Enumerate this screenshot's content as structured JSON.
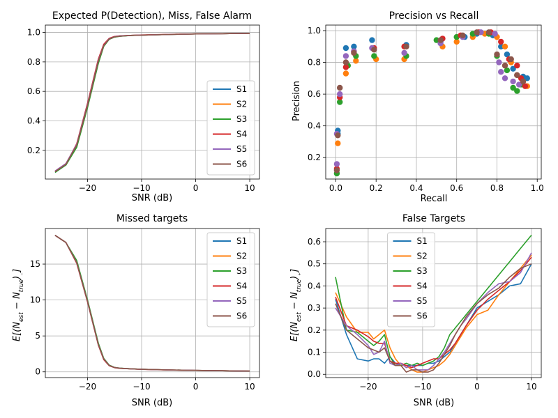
{
  "figure": {
    "colors": {
      "S1": "#1f77b4",
      "S2": "#ff7f0e",
      "S3": "#2ca02c",
      "S4": "#d62728",
      "S5": "#9467bd",
      "S6": "#8c564b",
      "grid": "#b0b0b0"
    }
  },
  "chart_data": [
    {
      "id": "detection",
      "type": "line",
      "title": "Expected P(Detection), Miss, False Alarm",
      "xlabel": "SNR (dB)",
      "ylabel": "",
      "xlim": [
        -27.8,
        11.8
      ],
      "ylim": [
        0.005,
        1.05
      ],
      "xticks": [
        -20,
        -10,
        0,
        10
      ],
      "xtick_labels": [
        "−20",
        "−10",
        "0",
        "10"
      ],
      "yticks": [
        0.2,
        0.4,
        0.6,
        0.8,
        1.0
      ],
      "ytick_labels": [
        "0.2",
        "0.4",
        "0.6",
        "0.8",
        "1.0"
      ],
      "grid": true,
      "legend": "lower right",
      "x": [
        -26,
        -24,
        -22,
        -20,
        -18,
        -17,
        -16,
        -15,
        -14,
        -12,
        -10,
        -5,
        0,
        5,
        10
      ],
      "series": [
        {
          "name": "S1",
          "values": [
            0.05,
            0.1,
            0.23,
            0.5,
            0.8,
            0.91,
            0.955,
            0.97,
            0.975,
            0.98,
            0.982,
            0.986,
            0.99,
            0.992,
            0.994
          ]
        },
        {
          "name": "S2",
          "values": [
            0.06,
            0.11,
            0.24,
            0.51,
            0.81,
            0.915,
            0.958,
            0.972,
            0.976,
            0.98,
            0.982,
            0.986,
            0.99,
            0.992,
            0.994
          ]
        },
        {
          "name": "S3",
          "values": [
            0.05,
            0.1,
            0.22,
            0.49,
            0.79,
            0.905,
            0.953,
            0.968,
            0.974,
            0.979,
            0.982,
            0.986,
            0.99,
            0.992,
            0.994
          ]
        },
        {
          "name": "S4",
          "values": [
            0.055,
            0.105,
            0.245,
            0.52,
            0.82,
            0.92,
            0.96,
            0.973,
            0.977,
            0.98,
            0.983,
            0.987,
            0.99,
            0.992,
            0.994
          ]
        },
        {
          "name": "S5",
          "values": [
            0.06,
            0.11,
            0.24,
            0.51,
            0.81,
            0.912,
            0.957,
            0.971,
            0.976,
            0.98,
            0.982,
            0.986,
            0.99,
            0.992,
            0.994
          ]
        },
        {
          "name": "S6",
          "values": [
            0.055,
            0.105,
            0.235,
            0.505,
            0.805,
            0.91,
            0.955,
            0.97,
            0.975,
            0.98,
            0.982,
            0.986,
            0.99,
            0.992,
            0.994
          ]
        }
      ]
    },
    {
      "id": "precision-recall",
      "type": "scatter",
      "title": "Precision vs Recall",
      "xlabel": "Recall",
      "ylabel": "Precision",
      "xlim": [
        -0.05,
        1.02
      ],
      "ylim": [
        0.065,
        1.035
      ],
      "xticks": [
        0.0,
        0.2,
        0.4,
        0.6,
        0.8,
        1.0
      ],
      "xtick_labels": [
        "0.0",
        "0.2",
        "0.4",
        "0.6",
        "0.8",
        "1.0"
      ],
      "yticks": [
        0.2,
        0.4,
        0.6,
        0.8,
        1.0
      ],
      "ytick_labels": [
        "0.2",
        "0.4",
        "0.6",
        "0.8",
        "1.0"
      ],
      "grid": true,
      "series": [
        {
          "name": "S1",
          "points": [
            [
              0.01,
              0.37
            ],
            [
              0.01,
              0.35
            ],
            [
              0.05,
              0.89
            ],
            [
              0.09,
              0.9
            ],
            [
              0.18,
              0.94
            ],
            [
              0.35,
              0.91
            ],
            [
              0.52,
              0.93
            ],
            [
              0.64,
              0.96
            ],
            [
              0.7,
              0.98
            ],
            [
              0.78,
              0.97
            ],
            [
              0.82,
              0.9
            ],
            [
              0.85,
              0.85
            ],
            [
              0.88,
              0.76
            ],
            [
              0.9,
              0.72
            ],
            [
              0.93,
              0.71
            ],
            [
              0.95,
              0.7
            ]
          ]
        },
        {
          "name": "S2",
          "points": [
            [
              0.01,
              0.29
            ],
            [
              0.05,
              0.73
            ],
            [
              0.1,
              0.81
            ],
            [
              0.2,
              0.82
            ],
            [
              0.34,
              0.82
            ],
            [
              0.53,
              0.9
            ],
            [
              0.6,
              0.93
            ],
            [
              0.68,
              0.96
            ],
            [
              0.74,
              0.98
            ],
            [
              0.8,
              0.96
            ],
            [
              0.84,
              0.9
            ],
            [
              0.87,
              0.8
            ],
            [
              0.9,
              0.72
            ],
            [
              0.93,
              0.68
            ],
            [
              0.95,
              0.65
            ]
          ]
        },
        {
          "name": "S3",
          "points": [
            [
              0.005,
              0.1
            ],
            [
              0.02,
              0.55
            ],
            [
              0.06,
              0.78
            ],
            [
              0.1,
              0.84
            ],
            [
              0.19,
              0.84
            ],
            [
              0.35,
              0.84
            ],
            [
              0.5,
              0.94
            ],
            [
              0.6,
              0.96
            ],
            [
              0.68,
              0.98
            ],
            [
              0.76,
              0.98
            ],
            [
              0.8,
              0.84
            ],
            [
              0.85,
              0.75
            ],
            [
              0.88,
              0.64
            ],
            [
              0.9,
              0.62
            ],
            [
              0.92,
              0.66
            ]
          ]
        },
        {
          "name": "S4",
          "points": [
            [
              0.005,
              0.13
            ],
            [
              0.02,
              0.58
            ],
            [
              0.05,
              0.77
            ],
            [
              0.09,
              0.87
            ],
            [
              0.19,
              0.89
            ],
            [
              0.34,
              0.9
            ],
            [
              0.53,
              0.95
            ],
            [
              0.62,
              0.97
            ],
            [
              0.71,
              0.99
            ],
            [
              0.77,
              0.99
            ],
            [
              0.82,
              0.93
            ],
            [
              0.86,
              0.82
            ],
            [
              0.9,
              0.78
            ],
            [
              0.92,
              0.7
            ],
            [
              0.94,
              0.65
            ]
          ]
        },
        {
          "name": "S5",
          "points": [
            [
              0.005,
              0.16
            ],
            [
              0.005,
              0.35
            ],
            [
              0.02,
              0.6
            ],
            [
              0.05,
              0.84
            ],
            [
              0.09,
              0.87
            ],
            [
              0.18,
              0.89
            ],
            [
              0.34,
              0.86
            ],
            [
              0.52,
              0.92
            ],
            [
              0.63,
              0.96
            ],
            [
              0.72,
              0.99
            ],
            [
              0.79,
              0.98
            ],
            [
              0.81,
              0.8
            ],
            [
              0.82,
              0.74
            ],
            [
              0.84,
              0.7
            ],
            [
              0.88,
              0.68
            ],
            [
              0.91,
              0.66
            ]
          ]
        },
        {
          "name": "S6",
          "points": [
            [
              0.005,
              0.12
            ],
            [
              0.01,
              0.34
            ],
            [
              0.02,
              0.64
            ],
            [
              0.05,
              0.8
            ],
            [
              0.09,
              0.86
            ],
            [
              0.19,
              0.88
            ],
            [
              0.35,
              0.9
            ],
            [
              0.52,
              0.94
            ],
            [
              0.63,
              0.97
            ],
            [
              0.7,
              0.99
            ],
            [
              0.76,
              0.99
            ],
            [
              0.8,
              0.85
            ],
            [
              0.84,
              0.78
            ],
            [
              0.87,
              0.82
            ],
            [
              0.9,
              0.72
            ],
            [
              0.93,
              0.68
            ]
          ]
        }
      ]
    },
    {
      "id": "missed",
      "type": "line",
      "title": "Missed targets",
      "xlabel": "SNR (dB)",
      "ylabel": "E[(N_est − N_true)₋]",
      "xlim": [
        -27.8,
        11.8
      ],
      "ylim": [
        -0.8,
        19.95
      ],
      "xticks": [
        -20,
        -10,
        0,
        10
      ],
      "xtick_labels": [
        "−20",
        "−10",
        "0",
        "10"
      ],
      "yticks": [
        0,
        5,
        10,
        15
      ],
      "ytick_labels": [
        "0",
        "5",
        "10",
        "15"
      ],
      "grid": true,
      "legend": "upper right",
      "x": [
        -26,
        -24,
        -22,
        -20,
        -18,
        -17,
        -16,
        -15,
        -14,
        -12,
        -10,
        -5,
        0,
        5,
        10
      ],
      "series": [
        {
          "name": "S1",
          "values": [
            19.0,
            18.0,
            15.3,
            9.8,
            3.8,
            1.8,
            0.9,
            0.6,
            0.5,
            0.42,
            0.35,
            0.27,
            0.2,
            0.15,
            0.1
          ]
        },
        {
          "name": "S2",
          "values": [
            19.0,
            18.0,
            15.2,
            9.8,
            3.8,
            1.8,
            0.9,
            0.6,
            0.5,
            0.42,
            0.35,
            0.27,
            0.2,
            0.15,
            0.1
          ]
        },
        {
          "name": "S3",
          "values": [
            19.0,
            18.0,
            15.5,
            10.0,
            4.0,
            1.9,
            0.95,
            0.62,
            0.52,
            0.43,
            0.36,
            0.27,
            0.2,
            0.15,
            0.1
          ]
        },
        {
          "name": "S4",
          "values": [
            19.0,
            18.0,
            15.1,
            9.7,
            3.7,
            1.7,
            0.85,
            0.58,
            0.48,
            0.41,
            0.34,
            0.26,
            0.2,
            0.15,
            0.1
          ]
        },
        {
          "name": "S5",
          "values": [
            19.0,
            18.0,
            15.2,
            9.8,
            3.8,
            1.8,
            0.9,
            0.6,
            0.5,
            0.42,
            0.35,
            0.27,
            0.2,
            0.15,
            0.1
          ]
        },
        {
          "name": "S6",
          "values": [
            19.0,
            18.0,
            15.2,
            9.8,
            3.8,
            1.8,
            0.9,
            0.6,
            0.5,
            0.42,
            0.35,
            0.27,
            0.2,
            0.15,
            0.1
          ]
        }
      ]
    },
    {
      "id": "false-targets",
      "type": "line",
      "title": "False Targets",
      "xlabel": "SNR (dB)",
      "ylabel": "E[(N_est − N_true)₊]",
      "xlim": [
        -27.8,
        11.8
      ],
      "ylim": [
        -0.015,
        0.66
      ],
      "xticks": [
        -20,
        -10,
        0,
        10
      ],
      "xtick_labels": [
        "−20",
        "−10",
        "0",
        "10"
      ],
      "yticks": [
        0.0,
        0.1,
        0.2,
        0.3,
        0.4,
        0.5,
        0.6
      ],
      "ytick_labels": [
        "0.0",
        "0.1",
        "0.2",
        "0.3",
        "0.4",
        "0.5",
        "0.6"
      ],
      "grid": true,
      "legend": "upper center",
      "x": [
        -26,
        -24,
        -22,
        -20,
        -19,
        -18,
        -17,
        -16,
        -15,
        -14,
        -13,
        -12,
        -11,
        -10,
        -9,
        -8,
        -7,
        -6,
        -5,
        -4,
        -3,
        -2,
        0,
        2,
        4,
        6,
        8,
        10
      ],
      "series": [
        {
          "name": "S1",
          "values": [
            0.34,
            0.18,
            0.07,
            0.06,
            0.07,
            0.07,
            0.05,
            0.08,
            0.05,
            0.04,
            0.04,
            0.04,
            0.04,
            0.04,
            0.05,
            0.05,
            0.06,
            0.08,
            0.1,
            0.14,
            0.18,
            0.22,
            0.3,
            0.33,
            0.36,
            0.4,
            0.41,
            0.5
          ]
        },
        {
          "name": "S2",
          "values": [
            0.37,
            0.26,
            0.19,
            0.19,
            0.16,
            0.18,
            0.2,
            0.12,
            0.07,
            0.04,
            0.04,
            0.02,
            0.01,
            0.01,
            0.02,
            0.03,
            0.04,
            0.06,
            0.09,
            0.13,
            0.17,
            0.21,
            0.27,
            0.29,
            0.36,
            0.42,
            0.48,
            0.54
          ]
        },
        {
          "name": "S3",
          "values": [
            0.44,
            0.2,
            0.19,
            0.15,
            0.13,
            0.15,
            0.18,
            0.08,
            0.04,
            0.04,
            0.05,
            0.04,
            0.05,
            0.04,
            0.05,
            0.06,
            0.08,
            0.12,
            0.18,
            0.21,
            0.24,
            0.27,
            0.33,
            0.39,
            0.45,
            0.51,
            0.57,
            0.63
          ]
        },
        {
          "name": "S4",
          "values": [
            0.35,
            0.22,
            0.2,
            0.17,
            0.15,
            0.14,
            0.14,
            0.06,
            0.05,
            0.05,
            0.04,
            0.03,
            0.04,
            0.05,
            0.06,
            0.07,
            0.07,
            0.09,
            0.11,
            0.14,
            0.18,
            0.22,
            0.29,
            0.34,
            0.38,
            0.42,
            0.47,
            0.53
          ]
        },
        {
          "name": "S5",
          "values": [
            0.3,
            0.22,
            0.18,
            0.13,
            0.09,
            0.1,
            0.15,
            0.05,
            0.04,
            0.05,
            0.03,
            0.04,
            0.02,
            0.02,
            0.02,
            0.04,
            0.07,
            0.1,
            0.14,
            0.18,
            0.22,
            0.25,
            0.32,
            0.37,
            0.41,
            0.42,
            0.46,
            0.55
          ]
        },
        {
          "name": "S6",
          "values": [
            0.32,
            0.2,
            0.16,
            0.12,
            0.11,
            0.1,
            0.12,
            0.06,
            0.04,
            0.04,
            0.01,
            0.02,
            0.02,
            0.01,
            0.01,
            0.02,
            0.05,
            0.09,
            0.13,
            0.18,
            0.22,
            0.26,
            0.32,
            0.36,
            0.39,
            0.44,
            0.48,
            0.5
          ]
        }
      ]
    }
  ]
}
